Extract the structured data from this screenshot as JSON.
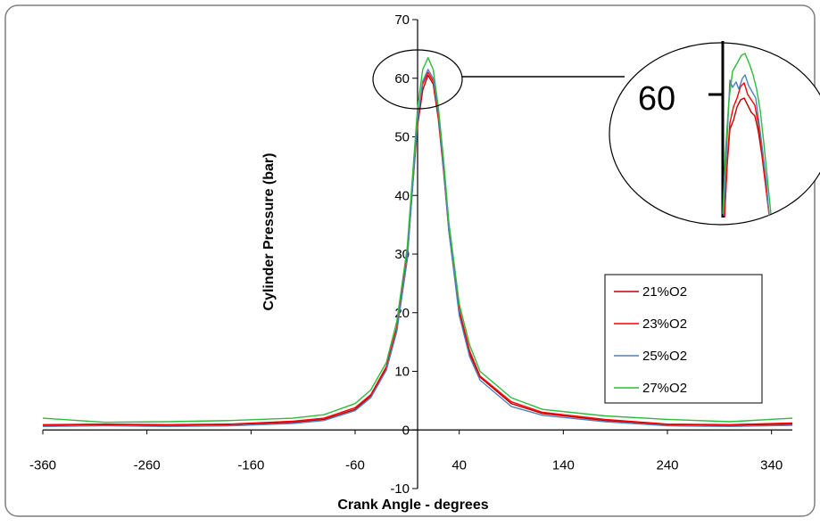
{
  "chart_data": {
    "type": "line",
    "title": "",
    "xlabel": "Crank Angle - degrees",
    "ylabel": "Cylinder Pressure (bar)",
    "xlim": [
      -360,
      360
    ],
    "ylim": [
      -10,
      70
    ],
    "x_ticks": [
      -360,
      -260,
      -160,
      -60,
      40,
      140,
      240,
      340
    ],
    "y_ticks": [
      -10,
      0,
      10,
      20,
      30,
      40,
      50,
      60,
      70
    ],
    "legend_position": "right",
    "grid": false,
    "series": [
      {
        "name": "21%O2",
        "color": "#c00000",
        "x": [
          -360,
          -300,
          -240,
          -180,
          -120,
          -90,
          -60,
          -45,
          -30,
          -20,
          -10,
          -5,
          0,
          5,
          10,
          15,
          20,
          25,
          30,
          40,
          50,
          60,
          90,
          120,
          180,
          240,
          300,
          360
        ],
        "y": [
          0.8,
          0.9,
          0.8,
          0.9,
          1.3,
          1.8,
          3.5,
          5.8,
          10.5,
          17,
          29,
          41,
          52,
          58,
          60.5,
          59,
          53,
          44,
          34,
          20,
          13,
          9,
          4.5,
          2.8,
          1.6,
          0.9,
          0.8,
          1.0
        ]
      },
      {
        "name": "23%O2",
        "color": "#ff0000",
        "x": [
          -360,
          -300,
          -240,
          -180,
          -120,
          -90,
          -60,
          -45,
          -30,
          -20,
          -10,
          -5,
          0,
          5,
          10,
          15,
          20,
          25,
          30,
          40,
          50,
          60,
          90,
          120,
          180,
          240,
          300,
          360
        ],
        "y": [
          0.9,
          1.0,
          0.9,
          1.0,
          1.5,
          2.0,
          3.8,
          6.0,
          10.8,
          17.5,
          30,
          42,
          53,
          59,
          61,
          59.5,
          53.5,
          44.5,
          34.5,
          20.5,
          13.5,
          9.2,
          4.8,
          3.0,
          1.8,
          1.0,
          0.9,
          1.2
        ]
      },
      {
        "name": "25%O2",
        "color": "#4f81bd",
        "x": [
          -360,
          -300,
          -240,
          -180,
          -120,
          -90,
          -60,
          -45,
          -30,
          -20,
          -10,
          -5,
          0,
          5,
          10,
          15,
          20,
          25,
          30,
          40,
          50,
          60,
          90,
          120,
          180,
          240,
          300,
          360
        ],
        "y": [
          0.6,
          0.7,
          0.6,
          0.7,
          1.1,
          1.6,
          3.3,
          5.5,
          10.2,
          16.8,
          29,
          41,
          53,
          59.5,
          61.5,
          60,
          54,
          44.5,
          34,
          19.5,
          12.5,
          8.5,
          4.0,
          2.5,
          1.4,
          0.7,
          0.6,
          0.8
        ]
      },
      {
        "name": "27%O2",
        "color": "#2ebb3c",
        "x": [
          -360,
          -300,
          -240,
          -180,
          -120,
          -90,
          -60,
          -45,
          -30,
          -20,
          -10,
          -5,
          0,
          5,
          10,
          15,
          20,
          25,
          30,
          40,
          50,
          60,
          90,
          120,
          180,
          240,
          300,
          360
        ],
        "y": [
          2.0,
          1.3,
          1.4,
          1.6,
          2.0,
          2.6,
          4.5,
          6.8,
          11.5,
          18.5,
          31,
          43,
          55,
          61.5,
          63.5,
          61.5,
          55,
          46,
          35.5,
          21.5,
          14.5,
          10,
          5.5,
          3.5,
          2.4,
          1.8,
          1.4,
          2.0
        ]
      }
    ],
    "annotations": [
      {
        "text": "60",
        "note": "magnified inset of peak region"
      }
    ]
  }
}
